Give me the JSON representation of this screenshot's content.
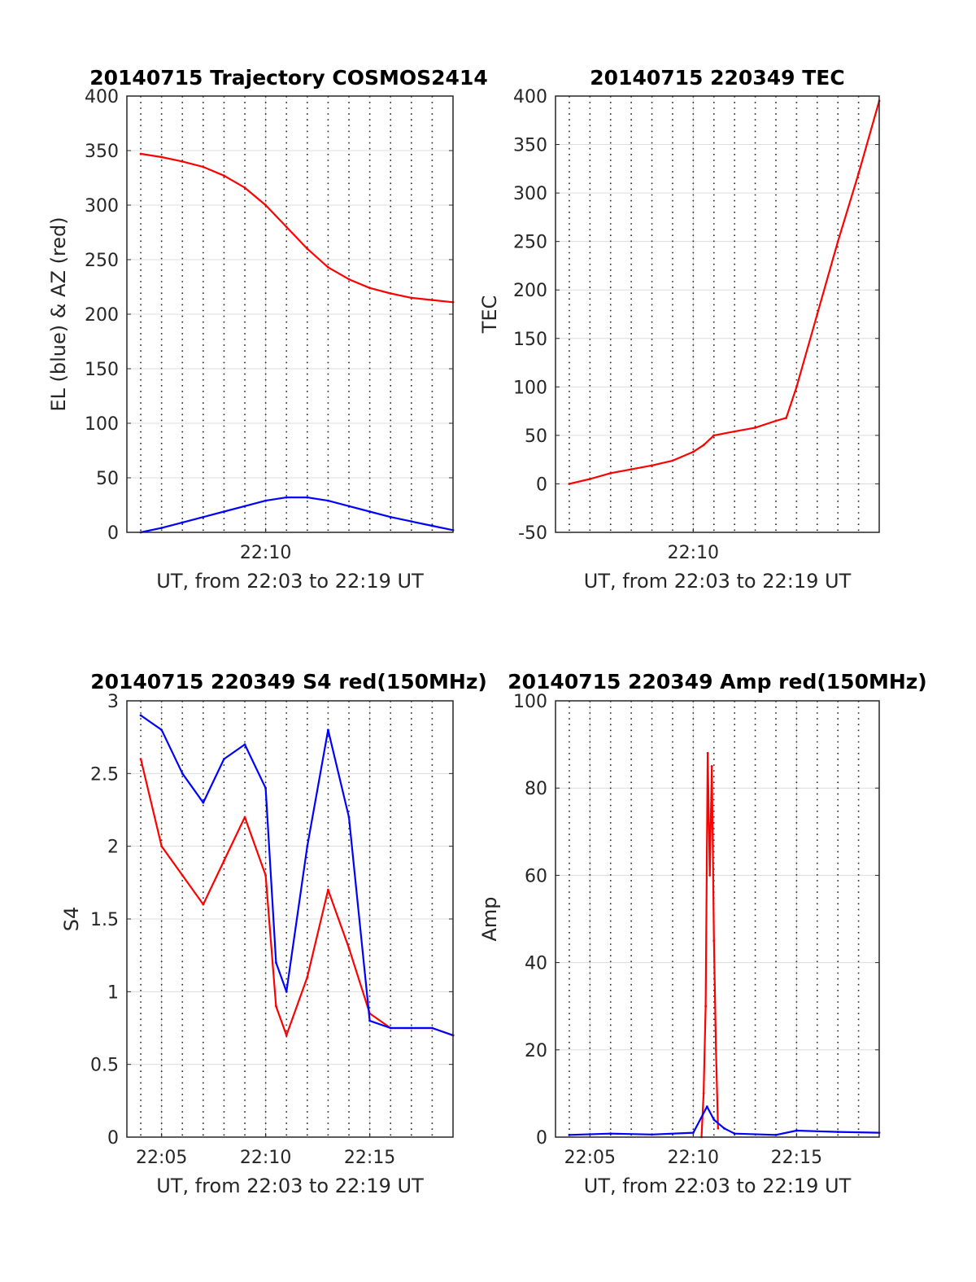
{
  "chart_data": [
    {
      "type": "line",
      "title": "20140715 Trajectory COSMOS2414",
      "xlabel": "UT, from 22:03 to 22:19 UT",
      "ylabel": "EL (blue) & AZ (red)",
      "xlim": [
        "22:03:20",
        "22:19:00"
      ],
      "ylim": [
        0,
        400
      ],
      "yticks": [
        0,
        50,
        100,
        150,
        200,
        250,
        300,
        350,
        400
      ],
      "xticks": [
        "22:10"
      ],
      "grid": true,
      "series": [
        {
          "color": "#ff0000",
          "x": [
            "22:04:00",
            "22:05:00",
            "22:06:00",
            "22:07:00",
            "22:08:00",
            "22:09:00",
            "22:10:00",
            "22:11:00",
            "22:12:00",
            "22:13:00",
            "22:14:00",
            "22:15:00",
            "22:16:00",
            "22:17:00",
            "22:18:00",
            "22:19:00"
          ],
          "values": [
            347,
            344,
            340,
            335,
            327,
            316,
            300,
            280,
            260,
            243,
            232,
            224,
            219,
            215,
            213,
            211
          ]
        },
        {
          "color": "#0000ff",
          "x": [
            "22:04:00",
            "22:05:00",
            "22:06:00",
            "22:07:00",
            "22:08:00",
            "22:09:00",
            "22:10:00",
            "22:11:00",
            "22:12:00",
            "22:13:00",
            "22:14:00",
            "22:15:00",
            "22:16:00",
            "22:17:00",
            "22:18:00",
            "22:19:00"
          ],
          "values": [
            0,
            4,
            9,
            14,
            19,
            24,
            29,
            32,
            32,
            29,
            24,
            19,
            14,
            10,
            6,
            2
          ]
        }
      ]
    },
    {
      "type": "line",
      "title": "20140715 220349 TEC",
      "xlabel": "UT, from 22:03 to 22:19 UT",
      "ylabel": "TEC",
      "xlim": [
        "22:03:20",
        "22:19:00"
      ],
      "ylim": [
        -50,
        400
      ],
      "yticks": [
        -50,
        0,
        50,
        100,
        150,
        200,
        250,
        300,
        350,
        400
      ],
      "xticks": [
        "22:10"
      ],
      "grid": true,
      "series": [
        {
          "color": "#ff0000",
          "x": [
            "22:04:00",
            "22:05:00",
            "22:06:00",
            "22:07:00",
            "22:08:00",
            "22:09:00",
            "22:10:00",
            "22:10:30",
            "22:11:00",
            "22:12:00",
            "22:13:00",
            "22:14:00",
            "22:14:30",
            "22:15:00",
            "22:16:00",
            "22:17:00",
            "22:18:00",
            "22:19:00"
          ],
          "values": [
            0,
            5,
            11,
            15,
            19,
            24,
            33,
            40,
            50,
            54,
            58,
            65,
            68,
            100,
            175,
            250,
            320,
            395
          ]
        }
      ]
    },
    {
      "type": "line",
      "title": "20140715 220349 S4 red(150MHz)",
      "xlabel": "UT, from 22:03 to 22:19 UT",
      "ylabel": "S4",
      "xlim": [
        "22:03:20",
        "22:19:00"
      ],
      "ylim": [
        0,
        3
      ],
      "yticks": [
        0,
        0.5,
        1,
        1.5,
        2,
        2.5,
        3
      ],
      "xticks": [
        "22:05",
        "22:10",
        "22:15"
      ],
      "grid": true,
      "series": [
        {
          "color": "#ff0000",
          "x": [
            "22:04:00",
            "22:05:00",
            "22:06:00",
            "22:07:00",
            "22:08:00",
            "22:09:00",
            "22:10:00",
            "22:10:30",
            "22:11:00",
            "22:12:00",
            "22:13:00",
            "22:14:00",
            "22:15:00",
            "22:16:00",
            "22:17:00",
            "22:18:00",
            "22:19:00"
          ],
          "values": [
            2.6,
            2.0,
            1.8,
            1.6,
            1.9,
            2.2,
            1.8,
            0.9,
            0.7,
            1.1,
            1.7,
            1.3,
            0.85,
            0.75,
            0.75,
            0.75,
            0.7
          ]
        },
        {
          "color": "#0000ff",
          "x": [
            "22:04:00",
            "22:05:00",
            "22:06:00",
            "22:07:00",
            "22:08:00",
            "22:09:00",
            "22:10:00",
            "22:10:30",
            "22:11:00",
            "22:12:00",
            "22:13:00",
            "22:14:00",
            "22:15:00",
            "22:16:00",
            "22:17:00",
            "22:18:00",
            "22:19:00"
          ],
          "values": [
            2.9,
            2.8,
            2.5,
            2.3,
            2.6,
            2.7,
            2.4,
            1.2,
            1.0,
            2.0,
            2.8,
            2.2,
            0.8,
            0.75,
            0.75,
            0.75,
            0.7
          ]
        }
      ]
    },
    {
      "type": "line",
      "title": "20140715 220349 Amp red(150MHz)",
      "xlabel": "UT, from 22:03 to 22:19 UT",
      "ylabel": "Amp",
      "xlim": [
        "22:03:20",
        "22:19:00"
      ],
      "ylim": [
        0,
        100
      ],
      "yticks": [
        0,
        20,
        40,
        60,
        80,
        100
      ],
      "xticks": [
        "22:05",
        "22:10",
        "22:15"
      ],
      "grid": true,
      "series": [
        {
          "color": "#ff0000",
          "x": [
            "22:10:24",
            "22:10:30",
            "22:10:36",
            "22:10:42",
            "22:10:48",
            "22:10:54",
            "22:11:00",
            "22:11:06",
            "22:11:12"
          ],
          "values": [
            0,
            10,
            30,
            88,
            60,
            85,
            45,
            20,
            2
          ]
        },
        {
          "color": "#0000ff",
          "x": [
            "22:04:00",
            "22:06:00",
            "22:08:00",
            "22:10:00",
            "22:10:40",
            "22:11:00",
            "22:11:30",
            "22:12:00",
            "22:14:00",
            "22:15:00",
            "22:17:00",
            "22:19:00"
          ],
          "values": [
            0.5,
            0.8,
            0.6,
            1.0,
            7,
            4,
            2,
            0.8,
            0.5,
            1.5,
            1.2,
            1.0
          ]
        }
      ]
    }
  ]
}
